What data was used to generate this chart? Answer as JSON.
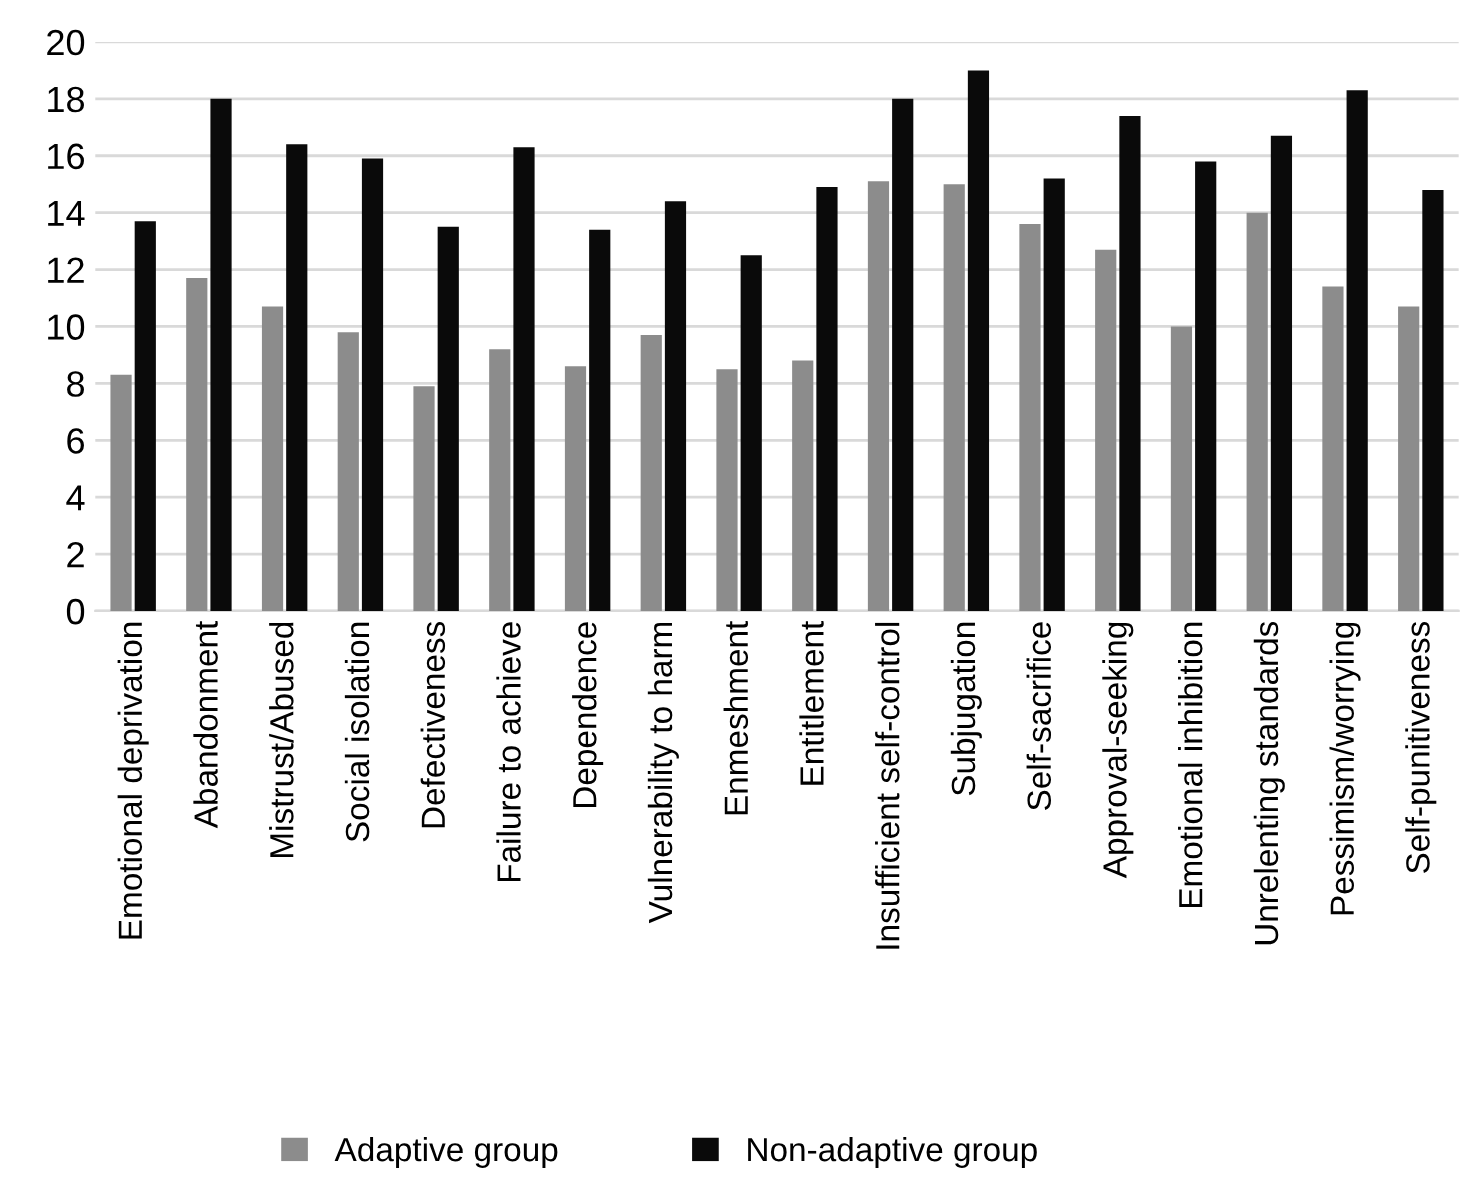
{
  "chart_data": {
    "type": "bar",
    "categories": [
      "Emotional deprivation",
      "Abandonment",
      "Mistrust/Abused",
      "Social isolation",
      "Defectiveness",
      "Failure to achieve",
      "Dependence",
      "Vulnerability to harm",
      "Enmeshment",
      "Entitlement",
      "Insufficient self-control",
      "Subjugation",
      "Self-sacrifice",
      "Approval-seeking",
      "Emotional inhibition",
      "Unrelenting standards",
      "Pessimism/worrying",
      "Self-punitiveness"
    ],
    "series": [
      {
        "name": "Adaptive group",
        "color": "#8c8c8c",
        "values": [
          8.3,
          11.7,
          10.7,
          9.8,
          7.9,
          9.2,
          8.6,
          9.7,
          8.5,
          8.8,
          15.1,
          15.0,
          13.6,
          12.7,
          10.0,
          14.0,
          11.4,
          10.7
        ]
      },
      {
        "name": "Non-adaptive group",
        "color": "#0a0a0a",
        "values": [
          13.7,
          18.0,
          16.4,
          15.9,
          13.5,
          16.3,
          13.4,
          14.4,
          12.5,
          14.9,
          18.0,
          19.0,
          15.2,
          17.4,
          15.8,
          16.7,
          18.3,
          14.8
        ]
      }
    ],
    "ylim": [
      0,
      20
    ],
    "yticks": [
      0,
      2,
      4,
      6,
      8,
      10,
      12,
      14,
      16,
      18,
      20
    ],
    "grid": "y",
    "legend": "bottom"
  }
}
